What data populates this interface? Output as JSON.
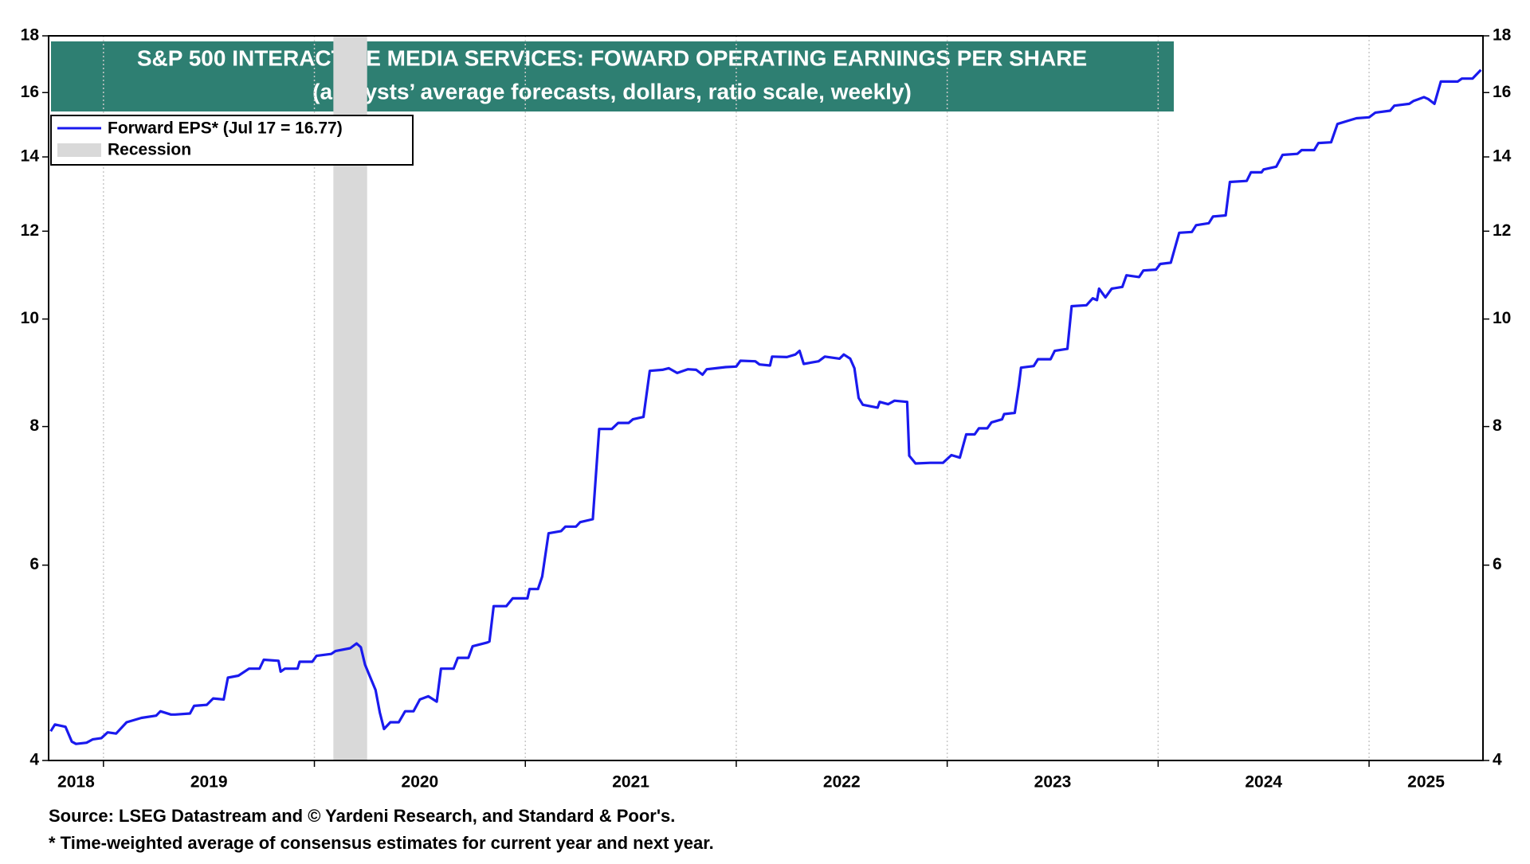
{
  "chart_data": {
    "type": "line",
    "title": "S&P 500 INTERACTIVE MEDIA SERVICES: FOWARD OPERATING EARNINGS PER SHARE",
    "subtitle": "(analysts’ average forecasts, dollars, ratio scale, weekly)",
    "x": [
      2018.75,
      2018.77,
      2018.82,
      2018.85,
      2018.87,
      2018.92,
      2018.95,
      2018.99,
      2019.02,
      2019.06,
      2019.11,
      2019.18,
      2019.25,
      2019.27,
      2019.32,
      2019.34,
      2019.41,
      2019.43,
      2019.49,
      2019.52,
      2019.57,
      2019.59,
      2019.64,
      2019.69,
      2019.74,
      2019.76,
      2019.83,
      2019.84,
      2019.86,
      2019.92,
      2019.93,
      2019.99,
      2020.01,
      2020.08,
      2020.1,
      2020.17,
      2020.2,
      2020.22,
      2020.24,
      2020.29,
      2020.31,
      2020.33,
      2020.36,
      2020.4,
      2020.43,
      2020.47,
      2020.5,
      2020.54,
      2020.58,
      2020.6,
      2020.66,
      2020.68,
      2020.73,
      2020.75,
      2020.82,
      2020.83,
      2020.85,
      2020.91,
      2020.94,
      2021.01,
      2021.02,
      2021.06,
      2021.08,
      2021.11,
      2021.17,
      2021.19,
      2021.24,
      2021.26,
      2021.32,
      2021.35,
      2021.41,
      2021.44,
      2021.49,
      2021.51,
      2021.56,
      2021.59,
      2021.65,
      2021.68,
      2021.72,
      2021.77,
      2021.81,
      2021.84,
      2021.86,
      2021.95,
      2022.0,
      2022.02,
      2022.09,
      2022.11,
      2022.16,
      2022.17,
      2022.24,
      2022.28,
      2022.3,
      2022.32,
      2022.39,
      2022.42,
      2022.49,
      2022.51,
      2022.54,
      2022.56,
      2022.58,
      2022.6,
      2022.67,
      2022.68,
      2022.72,
      2022.75,
      2022.81,
      2022.82,
      2022.85,
      2022.92,
      2022.98,
      2023.02,
      2023.06,
      2023.09,
      2023.13,
      2023.15,
      2023.19,
      2023.21,
      2023.26,
      2023.27,
      2023.32,
      2023.34,
      2023.35,
      2023.41,
      2023.43,
      2023.49,
      2023.51,
      2023.57,
      2023.59,
      2023.66,
      2023.69,
      2023.71,
      2023.72,
      2023.75,
      2023.78,
      2023.83,
      2023.85,
      2023.91,
      2023.93,
      2023.99,
      2024.01,
      2024.06,
      2024.1,
      2024.16,
      2024.18,
      2024.24,
      2024.26,
      2024.32,
      2024.34,
      2024.42,
      2024.44,
      2024.49,
      2024.5,
      2024.56,
      2024.59,
      2024.66,
      2024.68,
      2024.74,
      2024.76,
      2024.82,
      2024.85,
      2024.91,
      2024.94,
      2025.0,
      2025.03,
      2025.1,
      2025.12,
      2025.19,
      2025.21,
      2025.26,
      2025.28,
      2025.31,
      2025.34,
      2025.42,
      2025.44,
      2025.49,
      2025.53
    ],
    "series": [
      {
        "name": "Forward EPS* (Jul 17 = 16.77)",
        "color": "#1a1aee",
        "values": [
          4.25,
          4.31,
          4.29,
          4.16,
          4.14,
          4.15,
          4.18,
          4.19,
          4.24,
          4.23,
          4.33,
          4.37,
          4.39,
          4.43,
          4.4,
          4.4,
          4.41,
          4.48,
          4.49,
          4.55,
          4.54,
          4.75,
          4.77,
          4.84,
          4.84,
          4.93,
          4.92,
          4.81,
          4.84,
          4.84,
          4.91,
          4.91,
          4.97,
          4.99,
          5.02,
          5.05,
          5.1,
          5.06,
          4.88,
          4.63,
          4.42,
          4.27,
          4.33,
          4.33,
          4.43,
          4.43,
          4.54,
          4.57,
          4.52,
          4.84,
          4.84,
          4.95,
          4.95,
          5.07,
          5.11,
          5.12,
          5.51,
          5.51,
          5.6,
          5.6,
          5.71,
          5.71,
          5.86,
          6.41,
          6.44,
          6.5,
          6.5,
          6.56,
          6.6,
          7.96,
          7.96,
          8.06,
          8.06,
          8.12,
          8.16,
          8.98,
          9.0,
          9.03,
          8.94,
          9.01,
          9.0,
          8.91,
          9.01,
          9.05,
          9.06,
          9.17,
          9.16,
          9.1,
          9.08,
          9.25,
          9.24,
          9.29,
          9.36,
          9.11,
          9.16,
          9.25,
          9.21,
          9.29,
          9.21,
          9.03,
          8.49,
          8.37,
          8.32,
          8.42,
          8.38,
          8.44,
          8.42,
          7.53,
          7.41,
          7.42,
          7.42,
          7.54,
          7.5,
          7.87,
          7.87,
          7.97,
          7.97,
          8.07,
          8.12,
          8.21,
          8.23,
          8.72,
          9.04,
          9.07,
          9.2,
          9.2,
          9.36,
          9.4,
          10.27,
          10.29,
          10.44,
          10.4,
          10.65,
          10.46,
          10.65,
          10.69,
          10.95,
          10.91,
          11.06,
          11.08,
          11.21,
          11.24,
          11.96,
          11.98,
          12.15,
          12.2,
          12.37,
          12.4,
          13.29,
          13.32,
          13.56,
          13.56,
          13.64,
          13.72,
          14.06,
          14.09,
          14.2,
          14.2,
          14.41,
          14.43,
          14.99,
          15.11,
          15.17,
          15.2,
          15.35,
          15.41,
          15.57,
          15.63,
          15.72,
          15.85,
          15.79,
          15.63,
          16.37,
          16.37,
          16.47,
          16.47,
          16.77
        ]
      }
    ],
    "recession": {
      "name": "Recession",
      "color": "#d9d9d9",
      "ranges": [
        [
          2020.09,
          2020.25
        ]
      ]
    },
    "xlim": [
      2018.74,
      2025.54
    ],
    "xticks": [
      2018,
      2019,
      2020,
      2021,
      2022,
      2023,
      2024,
      2025
    ],
    "ylim": [
      4,
      18
    ],
    "yticks": [
      4,
      6,
      8,
      10,
      12,
      14,
      16,
      18
    ],
    "log_scale": true,
    "grid": true,
    "notes": [
      "Source: LSEG Datastream and © Yardeni Research, and Standard & Poor's.",
      "* Time-weighted average of consensus estimates for current year and next year."
    ]
  }
}
